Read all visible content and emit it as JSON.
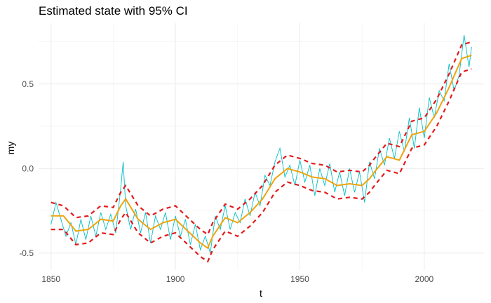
{
  "chart_data": {
    "type": "line",
    "title": "Estimated state with 95% CI",
    "xlabel": "t",
    "ylabel": "my",
    "xlim": [
      1845,
      2024
    ],
    "ylim": [
      -0.6,
      0.86
    ],
    "x_ticks": [
      1850,
      1900,
      1950,
      2000
    ],
    "y_ticks": [
      -0.5,
      0.0,
      0.5
    ],
    "x_tick_labels": [
      "1850",
      "1900",
      "1950",
      "2000"
    ],
    "y_tick_labels": [
      "-0.5",
      "0.0",
      "0.5"
    ],
    "grid": true,
    "x": [
      1850,
      1855,
      1860,
      1865,
      1870,
      1875,
      1878,
      1880,
      1885,
      1890,
      1895,
      1900,
      1905,
      1910,
      1913,
      1915,
      1920,
      1925,
      1930,
      1935,
      1940,
      1945,
      1950,
      1955,
      1960,
      1965,
      1970,
      1975,
      1978,
      1980,
      1985,
      1990,
      1995,
      2000,
      2005,
      2010,
      2015,
      2019
    ],
    "series": [
      {
        "values": [
          -0.28,
          -0.28,
          -0.37,
          -0.36,
          -0.3,
          -0.31,
          -0.22,
          -0.18,
          -0.3,
          -0.36,
          -0.32,
          -0.3,
          -0.37,
          -0.44,
          -0.47,
          -0.4,
          -0.29,
          -0.32,
          -0.26,
          -0.18,
          -0.06,
          0.0,
          -0.02,
          -0.05,
          -0.06,
          -0.1,
          -0.09,
          -0.1,
          -0.06,
          -0.02,
          0.07,
          0.05,
          0.2,
          0.22,
          0.33,
          0.48,
          0.65,
          0.67
        ],
        "color": "#f0a30a",
        "role": "state"
      },
      {
        "values": [
          -0.2,
          -0.22,
          -0.29,
          -0.28,
          -0.22,
          -0.23,
          -0.14,
          -0.1,
          -0.22,
          -0.28,
          -0.24,
          -0.22,
          -0.29,
          -0.36,
          -0.39,
          -0.32,
          -0.21,
          -0.24,
          -0.18,
          -0.1,
          0.02,
          0.08,
          0.06,
          0.03,
          0.02,
          -0.02,
          -0.01,
          -0.02,
          0.02,
          0.06,
          0.15,
          0.13,
          0.28,
          0.3,
          0.41,
          0.56,
          0.73,
          0.75
        ],
        "color": "#e41a1c",
        "role": "upper_ci"
      },
      {
        "values": [
          -0.36,
          -0.36,
          -0.45,
          -0.44,
          -0.38,
          -0.39,
          -0.3,
          -0.26,
          -0.38,
          -0.44,
          -0.4,
          -0.38,
          -0.45,
          -0.52,
          -0.55,
          -0.48,
          -0.37,
          -0.4,
          -0.34,
          -0.26,
          -0.14,
          -0.08,
          -0.1,
          -0.13,
          -0.14,
          -0.18,
          -0.17,
          -0.18,
          -0.14,
          -0.1,
          -0.01,
          -0.03,
          0.12,
          0.14,
          0.25,
          0.4,
          0.57,
          0.59
        ],
        "color": "#e41a1c",
        "role": "lower_ci"
      },
      {
        "x": [
          1850,
          1852,
          1854,
          1856,
          1858,
          1860,
          1862,
          1864,
          1866,
          1868,
          1870,
          1872,
          1874,
          1876,
          1878,
          1879,
          1880,
          1882,
          1884,
          1886,
          1888,
          1890,
          1892,
          1894,
          1896,
          1898,
          1900,
          1902,
          1904,
          1906,
          1908,
          1910,
          1912,
          1914,
          1916,
          1918,
          1920,
          1922,
          1924,
          1926,
          1928,
          1930,
          1932,
          1934,
          1936,
          1938,
          1940,
          1942,
          1944,
          1946,
          1948,
          1950,
          1952,
          1954,
          1956,
          1958,
          1960,
          1962,
          1964,
          1966,
          1968,
          1970,
          1972,
          1974,
          1976,
          1978,
          1980,
          1982,
          1984,
          1986,
          1988,
          1990,
          1992,
          1994,
          1996,
          1998,
          2000,
          2002,
          2004,
          2006,
          2008,
          2010,
          2012,
          2014,
          2016,
          2018,
          2019
        ],
        "values": [
          -0.33,
          -0.2,
          -0.3,
          -0.4,
          -0.32,
          -0.45,
          -0.3,
          -0.42,
          -0.28,
          -0.4,
          -0.26,
          -0.36,
          -0.27,
          -0.38,
          -0.12,
          0.04,
          -0.22,
          -0.36,
          -0.24,
          -0.38,
          -0.26,
          -0.44,
          -0.28,
          -0.36,
          -0.26,
          -0.42,
          -0.28,
          -0.4,
          -0.3,
          -0.45,
          -0.33,
          -0.48,
          -0.4,
          -0.5,
          -0.28,
          -0.36,
          -0.22,
          -0.36,
          -0.26,
          -0.32,
          -0.18,
          -0.28,
          -0.14,
          -0.22,
          -0.04,
          -0.1,
          0.04,
          0.12,
          -0.05,
          0.02,
          -0.1,
          0.05,
          -0.08,
          0.02,
          -0.16,
          0.0,
          -0.1,
          0.03,
          -0.14,
          -0.02,
          -0.16,
          0.0,
          -0.14,
          -0.02,
          -0.2,
          0.04,
          -0.06,
          0.12,
          0.02,
          0.18,
          0.06,
          0.22,
          0.1,
          0.3,
          0.12,
          0.36,
          0.18,
          0.42,
          0.3,
          0.46,
          0.4,
          0.62,
          0.46,
          0.55,
          0.79,
          0.6,
          0.72
        ],
        "color": "#00bfc4",
        "role": "observed"
      }
    ]
  }
}
